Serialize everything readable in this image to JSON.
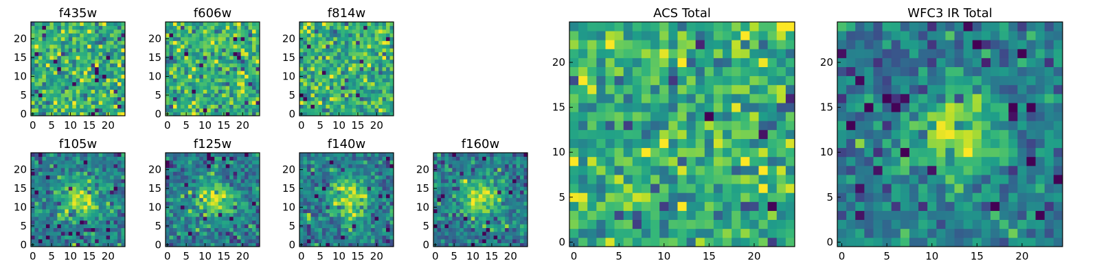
{
  "chart_data": [
    {
      "type": "heatmap",
      "title": "f435w",
      "xlim": [
        0,
        24
      ],
      "ylim": [
        0,
        24
      ],
      "xticks": [
        "0",
        "5",
        "10",
        "15",
        "20"
      ],
      "yticks": [
        "0",
        "5",
        "10",
        "15",
        "20"
      ],
      "profile": "noise",
      "colormap": "viridis"
    },
    {
      "type": "heatmap",
      "title": "f606w",
      "xlim": [
        0,
        24
      ],
      "ylim": [
        0,
        24
      ],
      "xticks": [
        "0",
        "5",
        "10",
        "15",
        "20"
      ],
      "yticks": [
        "0",
        "5",
        "10",
        "15",
        "20"
      ],
      "profile": "noise",
      "colormap": "viridis"
    },
    {
      "type": "heatmap",
      "title": "f814w",
      "xlim": [
        0,
        24
      ],
      "ylim": [
        0,
        24
      ],
      "xticks": [
        "0",
        "5",
        "10",
        "15",
        "20"
      ],
      "yticks": [
        "0",
        "5",
        "10",
        "15",
        "20"
      ],
      "profile": "noise",
      "colormap": "viridis"
    },
    {
      "type": "heatmap",
      "title": "f105w",
      "xlim": [
        0,
        24
      ],
      "ylim": [
        0,
        24
      ],
      "xticks": [
        "0",
        "5",
        "10",
        "15",
        "20"
      ],
      "yticks": [
        "0",
        "5",
        "10",
        "15",
        "20"
      ],
      "profile": "central-source",
      "colormap": "viridis"
    },
    {
      "type": "heatmap",
      "title": "f125w",
      "xlim": [
        0,
        24
      ],
      "ylim": [
        0,
        24
      ],
      "xticks": [
        "0",
        "5",
        "10",
        "15",
        "20"
      ],
      "yticks": [
        "0",
        "5",
        "10",
        "15",
        "20"
      ],
      "profile": "central-source",
      "colormap": "viridis"
    },
    {
      "type": "heatmap",
      "title": "f140w",
      "xlim": [
        0,
        24
      ],
      "ylim": [
        0,
        24
      ],
      "xticks": [
        "0",
        "5",
        "10",
        "15",
        "20"
      ],
      "yticks": [
        "0",
        "5",
        "10",
        "15",
        "20"
      ],
      "profile": "central-source",
      "colormap": "viridis"
    },
    {
      "type": "heatmap",
      "title": "f160w",
      "xlim": [
        0,
        24
      ],
      "ylim": [
        0,
        24
      ],
      "xticks": [
        "0",
        "5",
        "10",
        "15",
        "20"
      ],
      "yticks": [
        "0",
        "5",
        "10",
        "15",
        "20"
      ],
      "profile": "central-source",
      "colormap": "viridis"
    },
    {
      "type": "heatmap",
      "title": "ACS Total",
      "xlim": [
        0,
        24
      ],
      "ylim": [
        0,
        24
      ],
      "xticks": [
        "0",
        "5",
        "10",
        "15",
        "20"
      ],
      "yticks": [
        "0",
        "5",
        "10",
        "15",
        "20"
      ],
      "profile": "noise",
      "colormap": "viridis"
    },
    {
      "type": "heatmap",
      "title": "WFC3 IR Total",
      "xlim": [
        0,
        24
      ],
      "ylim": [
        0,
        24
      ],
      "xticks": [
        "0",
        "5",
        "10",
        "15",
        "20"
      ],
      "yticks": [
        "0",
        "5",
        "10",
        "15",
        "20"
      ],
      "profile": "central-source",
      "colormap": "viridis"
    }
  ]
}
